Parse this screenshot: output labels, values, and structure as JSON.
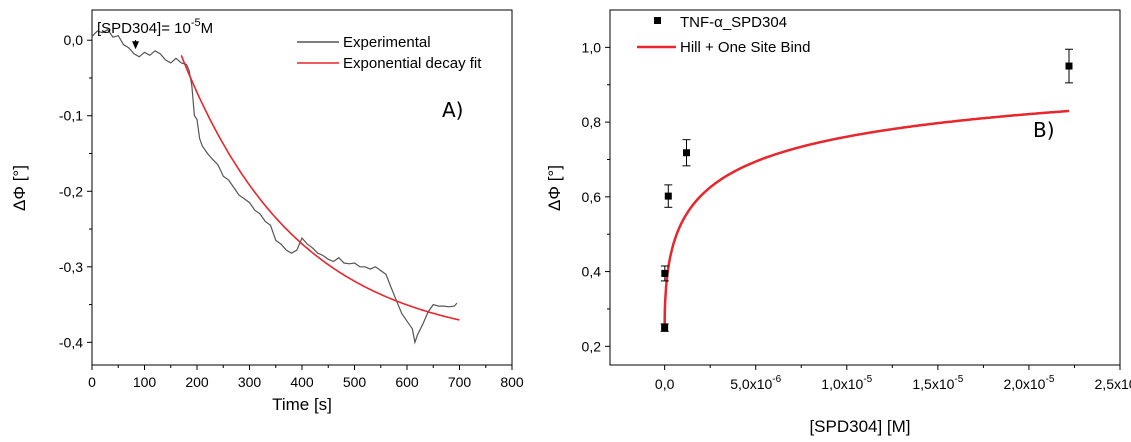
{
  "chart_data": [
    {
      "type": "line",
      "panel_label": "A)",
      "xlabel": "Time [s]",
      "ylabel": "ΔΦ [°]",
      "xlim": [
        0,
        800
      ],
      "ylim": [
        -0.43,
        0.04
      ],
      "x_ticks": [
        0,
        100,
        200,
        300,
        400,
        500,
        600,
        700,
        800
      ],
      "x_tick_labels": [
        "0",
        "100",
        "200",
        "300",
        "400",
        "500",
        "600",
        "700",
        "800"
      ],
      "y_ticks": [
        0.0,
        -0.1,
        -0.2,
        -0.3,
        -0.4
      ],
      "y_tick_labels": [
        "0,0",
        "-0,1",
        "-0,2",
        "-0,3",
        "-0,4"
      ],
      "annotation": {
        "text_prefix": "[SPD304]= 10",
        "text_exponent": "-5",
        "text_suffix": "M",
        "arrow_x": 83,
        "arrow_y": -0.012
      },
      "legend_position": "top-right",
      "series": [
        {
          "name": "Experimental",
          "color": "#555555",
          "points": [
            [
              0,
              0.005
            ],
            [
              10,
              0.012
            ],
            [
              20,
              0.01
            ],
            [
              30,
              0.014
            ],
            [
              40,
              0.004
            ],
            [
              50,
              0.006
            ],
            [
              60,
              -0.006
            ],
            [
              70,
              -0.01
            ],
            [
              80,
              -0.018
            ],
            [
              90,
              -0.022
            ],
            [
              100,
              -0.016
            ],
            [
              110,
              -0.02
            ],
            [
              120,
              -0.014
            ],
            [
              130,
              -0.018
            ],
            [
              140,
              -0.026
            ],
            [
              150,
              -0.03
            ],
            [
              160,
              -0.024
            ],
            [
              170,
              -0.03
            ],
            [
              180,
              -0.032
            ],
            [
              185,
              -0.04
            ],
            [
              190,
              -0.06
            ],
            [
              195,
              -0.1
            ],
            [
              200,
              -0.105
            ],
            [
              205,
              -0.13
            ],
            [
              210,
              -0.14
            ],
            [
              220,
              -0.15
            ],
            [
              230,
              -0.158
            ],
            [
              240,
              -0.165
            ],
            [
              250,
              -0.18
            ],
            [
              260,
              -0.185
            ],
            [
              270,
              -0.195
            ],
            [
              280,
              -0.205
            ],
            [
              290,
              -0.21
            ],
            [
              300,
              -0.215
            ],
            [
              310,
              -0.225
            ],
            [
              320,
              -0.23
            ],
            [
              330,
              -0.24
            ],
            [
              340,
              -0.245
            ],
            [
              350,
              -0.265
            ],
            [
              360,
              -0.27
            ],
            [
              370,
              -0.278
            ],
            [
              380,
              -0.282
            ],
            [
              390,
              -0.278
            ],
            [
              400,
              -0.262
            ],
            [
              410,
              -0.27
            ],
            [
              420,
              -0.275
            ],
            [
              430,
              -0.282
            ],
            [
              440,
              -0.285
            ],
            [
              450,
              -0.29
            ],
            [
              460,
              -0.293
            ],
            [
              470,
              -0.288
            ],
            [
              480,
              -0.295
            ],
            [
              490,
              -0.296
            ],
            [
              500,
              -0.295
            ],
            [
              510,
              -0.3
            ],
            [
              520,
              -0.3
            ],
            [
              530,
              -0.303
            ],
            [
              540,
              -0.3
            ],
            [
              550,
              -0.305
            ],
            [
              560,
              -0.31
            ],
            [
              570,
              -0.328
            ],
            [
              580,
              -0.345
            ],
            [
              590,
              -0.362
            ],
            [
              600,
              -0.372
            ],
            [
              610,
              -0.382
            ],
            [
              615,
              -0.4
            ],
            [
              620,
              -0.39
            ],
            [
              630,
              -0.376
            ],
            [
              640,
              -0.36
            ],
            [
              650,
              -0.35
            ],
            [
              660,
              -0.352
            ],
            [
              670,
              -0.352
            ],
            [
              680,
              -0.353
            ],
            [
              690,
              -0.352
            ],
            [
              695,
              -0.348
            ]
          ]
        },
        {
          "name": "Exponential decay fit",
          "color": "#e8262c",
          "function": {
            "y0": -0.405,
            "A": 0.385,
            "t0": 170,
            "tau": 220
          },
          "x_range": [
            170,
            700
          ]
        }
      ]
    },
    {
      "type": "scatter",
      "panel_label": "B)",
      "xlabel": "[SPD304] [M]",
      "ylabel": "ΔΦ [°]",
      "xlim": [
        -3e-06,
        2.5e-05
      ],
      "ylim": [
        0.15,
        1.1
      ],
      "x_ticks": [
        0,
        5e-06,
        1e-05,
        1.5e-05,
        2e-05,
        2.5e-05
      ],
      "x_tick_mantissas": [
        "0,0",
        "5,0x10",
        "1,0x10",
        "1,5x10",
        "2,0x10",
        "2,5x10"
      ],
      "x_tick_exponents": [
        "",
        "-6",
        "-5",
        "-5",
        "-5",
        "-5"
      ],
      "y_ticks": [
        0.2,
        0.4,
        0.6,
        0.8,
        1.0
      ],
      "y_tick_labels": [
        "0,2",
        "0,4",
        "0,6",
        "0,8",
        "1,0"
      ],
      "legend_position": "top-left",
      "series": [
        {
          "name": "TNF-α_SPD304",
          "color": "#000000",
          "points": [
            {
              "x": 0.0,
              "y": 0.25,
              "err": 0.01
            },
            {
              "x": 1e-08,
              "y": 0.395,
              "err": 0.02
            },
            {
              "x": 2e-07,
              "y": 0.602,
              "err": 0.03
            },
            {
              "x": 1.2e-06,
              "y": 0.718,
              "err": 0.035
            },
            {
              "x": 2.22e-05,
              "y": 0.95,
              "err": 0.045
            }
          ]
        },
        {
          "name": "Hill + One Site Bind",
          "color": "#e8262c",
          "function": {
            "y0": 0.25,
            "A": 0.8,
            "K": 3.2e-06,
            "n": 0.5
          },
          "x_range": [
            0,
            2.22e-05
          ]
        }
      ]
    }
  ]
}
